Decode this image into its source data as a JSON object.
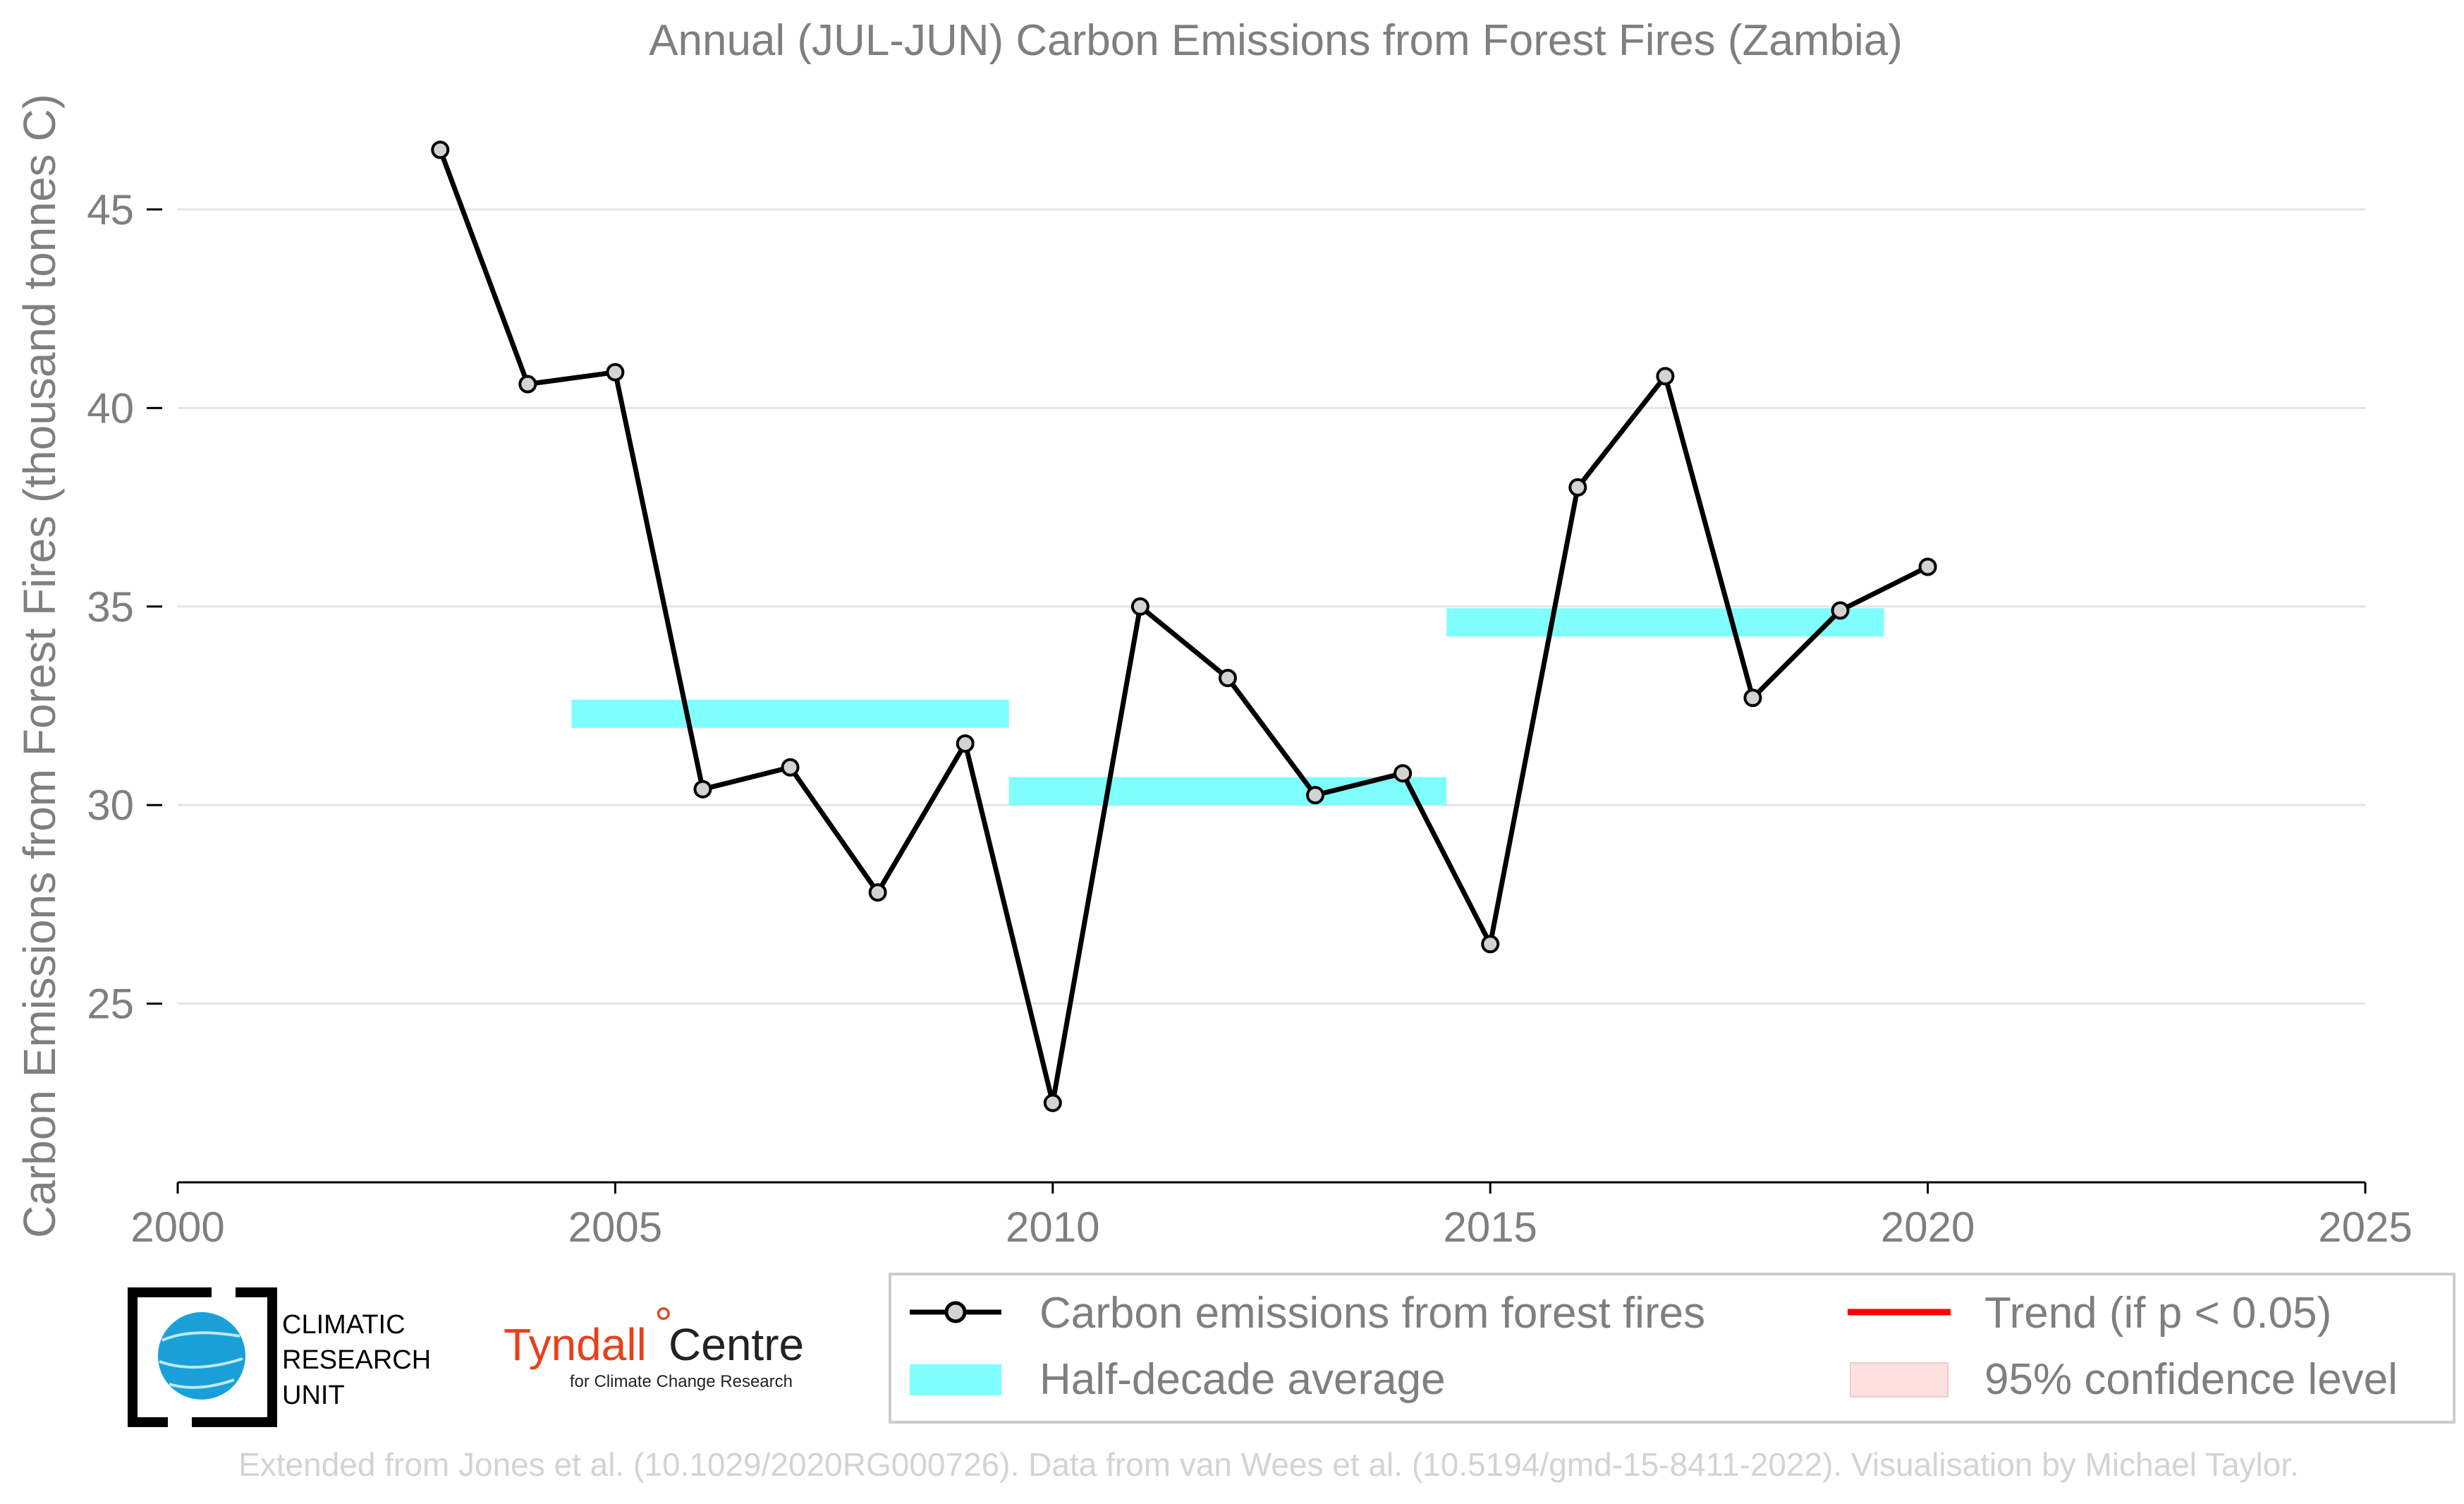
{
  "chart_data": {
    "type": "line",
    "title": "Annual (JUL-JUN) Carbon Emissions from Forest Fires (Zambia)",
    "ylabel": "Carbon Emissions from Forest Fires (thousand tonnes C)",
    "xlabel": "",
    "xlim": [
      2000,
      2025
    ],
    "ylim": [
      20.5,
      48
    ],
    "x_ticks": [
      2000,
      2005,
      2010,
      2015,
      2020,
      2025
    ],
    "y_ticks": [
      25,
      30,
      35,
      40,
      45
    ],
    "grid": "horizontal",
    "series": [
      {
        "name": "Carbon emissions from forest fires",
        "color": "#000000",
        "marker_color": "#d3d3d3",
        "x": [
          2003,
          2004,
          2005,
          2006,
          2007,
          2008,
          2009,
          2010,
          2011,
          2012,
          2013,
          2014,
          2015,
          2016,
          2017,
          2018,
          2019,
          2020
        ],
        "y": [
          46.5,
          40.6,
          40.9,
          30.4,
          30.95,
          27.8,
          31.55,
          22.5,
          35.0,
          33.2,
          30.25,
          30.8,
          26.5,
          38.0,
          40.8,
          32.7,
          34.9,
          36.0
        ]
      }
    ],
    "half_decade_averages": {
      "name": "Half-decade average",
      "color": "#80ffff",
      "segments": [
        {
          "x_start": 2004.5,
          "x_end": 2009.5,
          "value": 32.3
        },
        {
          "x_start": 2009.5,
          "x_end": 2014.5,
          "value": 30.35
        },
        {
          "x_start": 2014.5,
          "x_end": 2019.5,
          "value": 34.6
        }
      ]
    },
    "legend": {
      "placement": "bottom-right",
      "entries": [
        {
          "label": "Carbon emissions from forest fires",
          "symbol": "line-marker",
          "color": "#000000"
        },
        {
          "label": "Trend (if p < 0.05)",
          "symbol": "line",
          "color": "#ff0000"
        },
        {
          "label": "Half-decade average",
          "symbol": "band",
          "color": "#80ffff"
        },
        {
          "label": "95% confidence level",
          "symbol": "patch",
          "color": "#fde0e0"
        }
      ]
    }
  },
  "logos": {
    "cru_lines": [
      "CLIMATIC",
      "RESEARCH",
      "UNIT"
    ],
    "tyndall_name": "Tyndall",
    "tyndall_centre": "Centre",
    "tyndall_subtitle": "for Climate Change Research"
  },
  "credit": "Extended from Jones et al. (10.1029/2020RG000726). Data from van Wees et al. (10.5194/gmd-15-8411-2022). Visualisation by Michael Taylor."
}
